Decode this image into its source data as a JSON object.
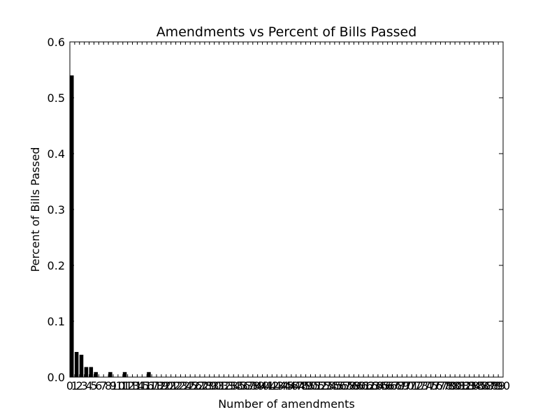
{
  "chart_data": {
    "type": "bar",
    "title": "Amendments vs Percent of Bills Passed",
    "xlabel": "Number of amendments",
    "ylabel": "Percent of Bills Passed",
    "xlim": [
      0,
      90
    ],
    "ylim": [
      0,
      0.6
    ],
    "yticks": [
      "0.0",
      "0.1",
      "0.2",
      "0.3",
      "0.4",
      "0.5",
      "0.6"
    ],
    "xticks": [
      "0",
      "1",
      "2",
      "3",
      "4",
      "5",
      "6",
      "7",
      "8",
      "9",
      "10",
      "11",
      "12",
      "13",
      "14",
      "15",
      "16",
      "17",
      "18",
      "19",
      "20",
      "21",
      "22",
      "23",
      "24",
      "25",
      "26",
      "27",
      "28",
      "29",
      "30",
      "31",
      "32",
      "33",
      "34",
      "35",
      "36",
      "37",
      "38",
      "39",
      "40",
      "41",
      "42",
      "43",
      "44",
      "45",
      "46",
      "47",
      "48",
      "49",
      "50",
      "51",
      "52",
      "53",
      "54",
      "55",
      "56",
      "57",
      "58",
      "59",
      "60",
      "61",
      "62",
      "63",
      "64",
      "65",
      "66",
      "67",
      "68",
      "69",
      "70",
      "71",
      "72",
      "73",
      "74",
      "75",
      "76",
      "77",
      "78",
      "79",
      "80",
      "81",
      "82",
      "83",
      "84",
      "85",
      "86",
      "87",
      "88",
      "89",
      "90"
    ],
    "categories": [
      0,
      1,
      2,
      3,
      4,
      5,
      6,
      7,
      8,
      9,
      10,
      11,
      12,
      13,
      14,
      15,
      16,
      17,
      18,
      19,
      20,
      21,
      22,
      23,
      24,
      25,
      26,
      27,
      28,
      29,
      30,
      31,
      32,
      33,
      34,
      35,
      36,
      37,
      38,
      39,
      40,
      41,
      42,
      43,
      44,
      45,
      46,
      47,
      48,
      49,
      50,
      51,
      52,
      53,
      54,
      55,
      56,
      57,
      58,
      59,
      60,
      61,
      62,
      63,
      64,
      65,
      66,
      67,
      68,
      69,
      70,
      71,
      72,
      73,
      74,
      75,
      76,
      77,
      78,
      79,
      80,
      81,
      82,
      83,
      84,
      85,
      86,
      87,
      88,
      89
    ],
    "values": [
      0.54,
      0.045,
      0.04,
      0.018,
      0.018,
      0.009,
      0,
      0,
      0.009,
      0,
      0,
      0.009,
      0,
      0,
      0,
      0,
      0.009,
      0,
      0,
      0,
      0,
      0,
      0,
      0,
      0,
      0,
      0,
      0,
      0,
      0,
      0,
      0,
      0,
      0,
      0,
      0,
      0,
      0,
      0,
      0,
      0,
      0,
      0,
      0,
      0,
      0,
      0,
      0,
      0,
      0,
      0,
      0,
      0,
      0,
      0,
      0,
      0,
      0,
      0,
      0,
      0,
      0,
      0,
      0,
      0,
      0,
      0,
      0,
      0,
      0,
      0,
      0,
      0,
      0,
      0,
      0,
      0,
      0,
      0,
      0,
      0,
      0,
      0,
      0,
      0,
      0,
      0,
      0,
      0,
      0
    ],
    "bar_color": "#000000",
    "grid": false,
    "legend": "none"
  }
}
